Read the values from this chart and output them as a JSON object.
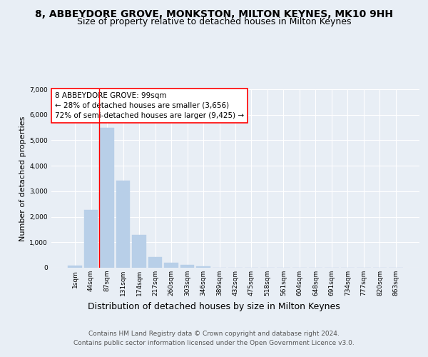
{
  "title": "8, ABBEYDORE GROVE, MONKSTON, MILTON KEYNES, MK10 9HH",
  "subtitle": "Size of property relative to detached houses in Milton Keynes",
  "xlabel": "Distribution of detached houses by size in Milton Keynes",
  "ylabel": "Number of detached properties",
  "categories": [
    "1sqm",
    "44sqm",
    "87sqm",
    "131sqm",
    "174sqm",
    "217sqm",
    "260sqm",
    "303sqm",
    "346sqm",
    "389sqm",
    "432sqm",
    "475sqm",
    "518sqm",
    "561sqm",
    "604sqm",
    "648sqm",
    "691sqm",
    "734sqm",
    "777sqm",
    "820sqm",
    "863sqm"
  ],
  "values": [
    80,
    2260,
    5480,
    3420,
    1300,
    430,
    185,
    100,
    55,
    0,
    0,
    0,
    0,
    0,
    0,
    0,
    0,
    0,
    0,
    0,
    0
  ],
  "bar_color": "#b8cfe8",
  "bar_edgecolor": "#b8cfe8",
  "vline_x": 1.5,
  "vline_color": "red",
  "ylim": [
    0,
    7000
  ],
  "yticks": [
    0,
    1000,
    2000,
    3000,
    4000,
    5000,
    6000,
    7000
  ],
  "annotation_box": {
    "text_line1": "8 ABBEYDORE GROVE: 99sqm",
    "text_line2": "← 28% of detached houses are smaller (3,656)",
    "text_line3": "72% of semi-detached houses are larger (9,425) →"
  },
  "footnote1": "Contains HM Land Registry data © Crown copyright and database right 2024.",
  "footnote2": "Contains public sector information licensed under the Open Government Licence v3.0.",
  "background_color": "#e8eef5",
  "plot_background_color": "#e8eef5",
  "title_fontsize": 10,
  "subtitle_fontsize": 9,
  "xlabel_fontsize": 9,
  "ylabel_fontsize": 8,
  "tick_fontsize": 6.5,
  "annotation_fontsize": 7.5,
  "footnote_fontsize": 6.5
}
